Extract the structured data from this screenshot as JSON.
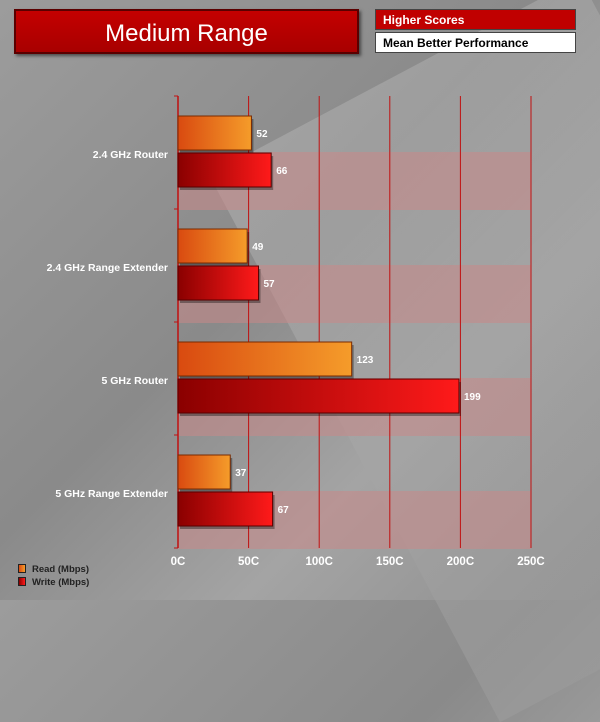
{
  "header": {
    "title": "Medium Range",
    "legend_top_1": "Higher Scores",
    "legend_top_2": "Mean Better Performance"
  },
  "colors": {
    "title_bg": "#b80000",
    "read_start": "#d94a10",
    "read_end": "#f59c2a",
    "write_start": "#8a0000",
    "write_end": "#ff1a1a",
    "stripe": "#c98888",
    "grid": "#c01010"
  },
  "chart_data": {
    "type": "bar",
    "orientation": "horizontal",
    "categories": [
      "2.4 GHz Router",
      "2.4 GHz Range Extender",
      "5 GHz Router",
      "5 GHz Range Extender"
    ],
    "series": [
      {
        "name": "Read (Mbps)",
        "values": [
          52,
          49,
          123,
          37
        ]
      },
      {
        "name": "Write (Mbps)",
        "values": [
          66,
          57,
          199,
          67
        ]
      }
    ],
    "xlim": [
      0,
      250
    ],
    "xticks": [
      "0C",
      "50C",
      "100C",
      "150C",
      "200C",
      "250C"
    ],
    "xtick_values": [
      0,
      50,
      100,
      150,
      200,
      250
    ],
    "grid": true,
    "legend_position": "bottom-left"
  }
}
